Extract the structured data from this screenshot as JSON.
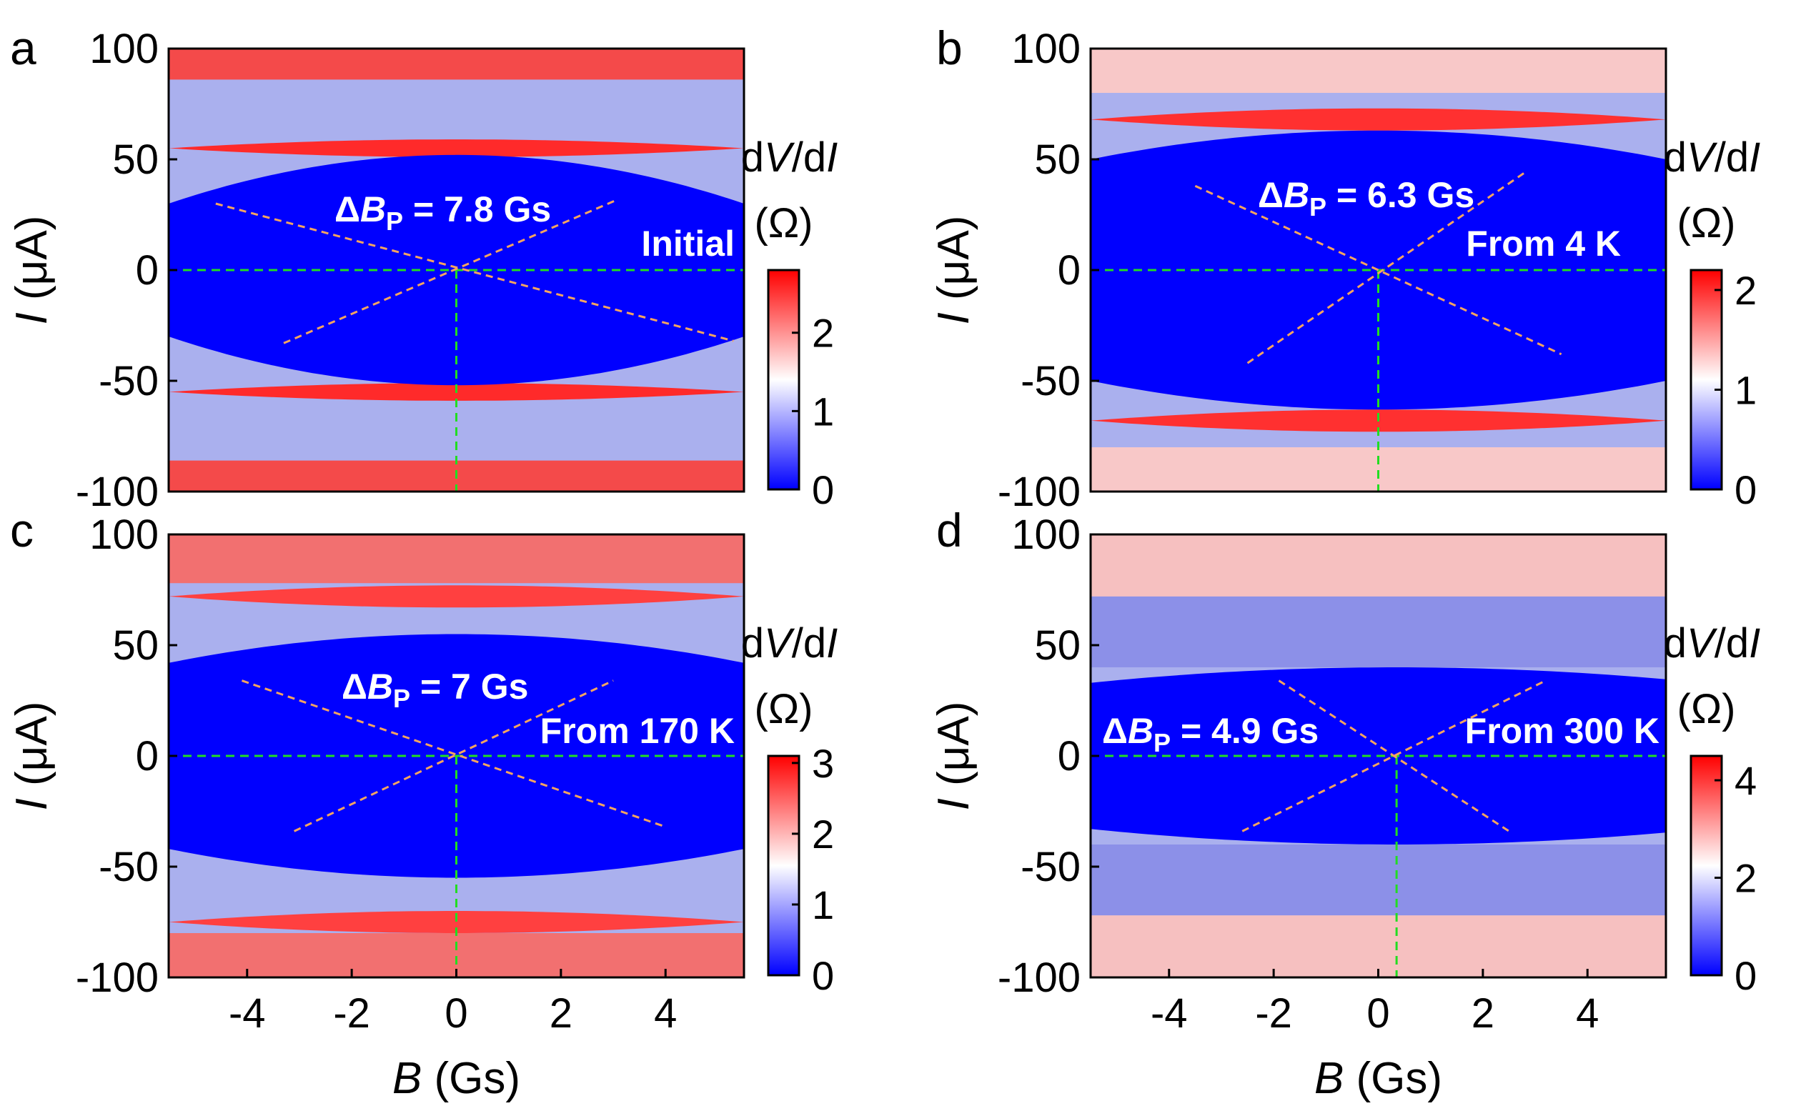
{
  "chart_data": [
    {
      "type": "heatmap",
      "panel_label": "a",
      "xlabel": "",
      "ylabel": {
        "italic": "I",
        "unit": " (μA)"
      },
      "xlim": [
        -5.5,
        5.5
      ],
      "ylim": [
        -100,
        100
      ],
      "y_ticks": [
        100,
        50,
        0,
        -50,
        -100
      ],
      "y_tick_labels": [
        "100",
        "50",
        "0",
        "-50",
        "-100"
      ],
      "x_ticks": [],
      "x_tick_labels": [],
      "colorbar": {
        "label_parts": [
          "d",
          "V",
          "/d",
          "I"
        ],
        "unit": "(Ω)",
        "range": [
          0,
          2.8
        ],
        "ticks": [
          0,
          1,
          2
        ],
        "tick_labels": [
          "0",
          "1",
          "2"
        ],
        "colors": [
          "#0000ff",
          "#ffffff",
          "#ff0000"
        ]
      },
      "annotations": {
        "delta": "ΔB",
        "sub": "P",
        "value": " = 7.8 Gs",
        "condition": "Initial"
      },
      "delta_bp_gs": 7.8,
      "centre": {
        "B": 0.0,
        "I": 0
      },
      "guide_lines": [
        {
          "color": "#f4a460",
          "from": [
            -4.6,
            30
          ],
          "to": [
            5.3,
            -32
          ]
        },
        {
          "color": "#f4a460",
          "from": [
            -3.3,
            -33
          ],
          "to": [
            3.1,
            32
          ]
        }
      ],
      "critical_current_uA": {
        "min": 30,
        "max": 52
      },
      "bands": [
        {
          "name": "superconducting-core",
          "kind": "dome",
          "I_center": 0,
          "I_half_edge": 30,
          "I_half_center": 52,
          "color": "#0000ff"
        },
        {
          "name": "red-ridge-upper",
          "kind": "dome",
          "I_center": 55,
          "I_half_edge": 0,
          "I_half_center": 4,
          "color": "#ff2a2a"
        },
        {
          "name": "red-ridge-lower",
          "kind": "dome",
          "I_center": -55,
          "I_half_edge": 0,
          "I_half_center": 4,
          "color": "#ff2a2a"
        },
        {
          "name": "top-red-band",
          "kind": "band",
          "I_lo": 86,
          "I_hi": 100,
          "color": "#f44a4a"
        },
        {
          "name": "bottom-red-band",
          "kind": "band",
          "I_lo": -100,
          "I_hi": -86,
          "color": "#f44a4a"
        }
      ]
    },
    {
      "type": "heatmap",
      "panel_label": "b",
      "xlabel": "",
      "ylabel": {
        "italic": "I",
        "unit": " (μA)"
      },
      "xlim": [
        -5.5,
        5.5
      ],
      "ylim": [
        -100,
        100
      ],
      "y_ticks": [
        100,
        50,
        0,
        -50,
        -100
      ],
      "y_tick_labels": [
        "100",
        "50",
        "0",
        "-50",
        "-100"
      ],
      "x_ticks": [],
      "x_tick_labels": [],
      "colorbar": {
        "label_parts": [
          "d",
          "V",
          "/d",
          "I"
        ],
        "unit": "(Ω)",
        "range": [
          0,
          2.2
        ],
        "ticks": [
          0,
          1,
          2
        ],
        "tick_labels": [
          "0",
          "1",
          "2"
        ],
        "colors": [
          "#0000ff",
          "#ffffff",
          "#ff0000"
        ]
      },
      "annotations": {
        "delta": "ΔB",
        "sub": "P",
        "value": " = 6.3 Gs",
        "condition": "From 4 K"
      },
      "delta_bp_gs": 6.3,
      "centre": {
        "B": 0.0,
        "I": 0
      },
      "guide_lines": [
        {
          "color": "#f4a460",
          "from": [
            -3.5,
            38
          ],
          "to": [
            3.5,
            -38
          ]
        },
        {
          "color": "#f4a460",
          "from": [
            -2.5,
            -42
          ],
          "to": [
            2.8,
            44
          ]
        }
      ],
      "critical_current_uA": {
        "min": 50,
        "max": 63
      },
      "bands": [
        {
          "name": "superconducting-core",
          "kind": "dome",
          "I_center": 0,
          "I_half_edge": 50,
          "I_half_center": 63,
          "color": "#0000ff"
        },
        {
          "name": "red-ridge-upper",
          "kind": "dome",
          "I_center": 68,
          "I_half_edge": 0,
          "I_half_center": 5,
          "color": "#ff3030"
        },
        {
          "name": "red-ridge-lower",
          "kind": "dome",
          "I_center": -68,
          "I_half_edge": 0,
          "I_half_center": 5,
          "color": "#ff3030"
        },
        {
          "name": "top-light-band",
          "kind": "band",
          "I_lo": 80,
          "I_hi": 100,
          "color": "#f8c8c8"
        },
        {
          "name": "bottom-light-band",
          "kind": "band",
          "I_lo": -100,
          "I_hi": -80,
          "color": "#f8c8c8"
        }
      ]
    },
    {
      "type": "heatmap",
      "panel_label": "c",
      "xlabel": {
        "italic": "B",
        "unit": " (Gs)"
      },
      "ylabel": {
        "italic": "I",
        "unit": " (μA)"
      },
      "xlim": [
        -5.5,
        5.5
      ],
      "ylim": [
        -100,
        100
      ],
      "y_ticks": [
        100,
        50,
        0,
        -50,
        -100
      ],
      "y_tick_labels": [
        "100",
        "50",
        "0",
        "-50",
        "-100"
      ],
      "x_ticks": [
        -4,
        -2,
        0,
        2,
        4
      ],
      "x_tick_labels": [
        "-4",
        "-2",
        "0",
        "2",
        "4"
      ],
      "colorbar": {
        "label_parts": [
          "d",
          "V",
          "/d",
          "I"
        ],
        "unit": "(Ω)",
        "range": [
          0,
          3.1
        ],
        "ticks": [
          0,
          1,
          2,
          3
        ],
        "tick_labels": [
          "0",
          "1",
          "2",
          "3"
        ],
        "colors": [
          "#0000ff",
          "#ffffff",
          "#ff0000"
        ]
      },
      "annotations": {
        "delta": "ΔB",
        "sub": "P",
        "value": " = 7 Gs",
        "condition": "From 170 K"
      },
      "delta_bp_gs": 7.0,
      "centre": {
        "B": 0.0,
        "I": 0
      },
      "guide_lines": [
        {
          "color": "#f4a460",
          "from": [
            -4.1,
            34
          ],
          "to": [
            4.0,
            -32
          ]
        },
        {
          "color": "#f4a460",
          "from": [
            -3.1,
            -34
          ],
          "to": [
            3.0,
            34
          ]
        }
      ],
      "critical_current_uA": {
        "min": 42,
        "max": 55
      },
      "bands": [
        {
          "name": "superconducting-core",
          "kind": "dome",
          "I_center": 0,
          "I_half_edge": 42,
          "I_half_center": 55,
          "color": "#0000ff"
        },
        {
          "name": "red-ridge-upper",
          "kind": "dome",
          "I_center": 72,
          "I_half_edge": 0,
          "I_half_center": 5,
          "color": "#ff4040"
        },
        {
          "name": "red-ridge-lower",
          "kind": "dome",
          "I_center": -75,
          "I_half_edge": 0,
          "I_half_center": 5,
          "color": "#ff4040"
        },
        {
          "name": "top-red-band",
          "kind": "band",
          "I_lo": 78,
          "I_hi": 100,
          "color": "#f27070"
        },
        {
          "name": "bottom-red-band",
          "kind": "band",
          "I_lo": -100,
          "I_hi": -80,
          "color": "#f27070"
        }
      ]
    },
    {
      "type": "heatmap",
      "panel_label": "d",
      "xlabel": {
        "italic": "B",
        "unit": " (Gs)"
      },
      "ylabel": {
        "italic": "I",
        "unit": " (μA)"
      },
      "xlim": [
        -5.5,
        5.5
      ],
      "ylim": [
        -100,
        100
      ],
      "y_ticks": [
        100,
        50,
        0,
        -50,
        -100
      ],
      "y_tick_labels": [
        "100",
        "50",
        "0",
        "-50",
        "-100"
      ],
      "x_ticks": [
        -4,
        -2,
        0,
        2,
        4
      ],
      "x_tick_labels": [
        "-4",
        "-2",
        "0",
        "2",
        "4"
      ],
      "colorbar": {
        "label_parts": [
          "d",
          "V",
          "/d",
          "I"
        ],
        "unit": "(Ω)",
        "range": [
          0,
          4.5
        ],
        "ticks": [
          0,
          2,
          4
        ],
        "tick_labels": [
          "0",
          "2",
          "4"
        ],
        "colors": [
          "#0000ff",
          "#ffffff",
          "#ff0000"
        ]
      },
      "annotations": {
        "delta": "ΔB",
        "sub": "P",
        "value": " = 4.9 Gs",
        "condition": "From 300 K"
      },
      "delta_bp_gs": 4.9,
      "centre": {
        "B": 0.35,
        "I": 0
      },
      "guide_lines": [
        {
          "color": "#f4a460",
          "from": [
            -1.9,
            34
          ],
          "to": [
            2.5,
            -34
          ]
        },
        {
          "color": "#f4a460",
          "from": [
            -2.6,
            -34
          ],
          "to": [
            3.2,
            34
          ]
        }
      ],
      "critical_current_uA": {
        "min": 33,
        "max": 40
      },
      "bands": [
        {
          "name": "superconducting-core",
          "kind": "dome",
          "I_center": 0,
          "I_half_edge": 33,
          "I_half_center": 40,
          "color": "#0000ff"
        },
        {
          "name": "upper-pale-band",
          "kind": "band",
          "I_lo": 40,
          "I_hi": 72,
          "color": "#8c90e8"
        },
        {
          "name": "lower-pale-band",
          "kind": "band",
          "I_lo": -72,
          "I_hi": -40,
          "color": "#8c90e8"
        },
        {
          "name": "top-pink-band",
          "kind": "band",
          "I_lo": 72,
          "I_hi": 100,
          "color": "#f6c0c0"
        },
        {
          "name": "bottom-pink-band",
          "kind": "band",
          "I_lo": -100,
          "I_hi": -72,
          "color": "#f6c0c0"
        }
      ]
    }
  ]
}
